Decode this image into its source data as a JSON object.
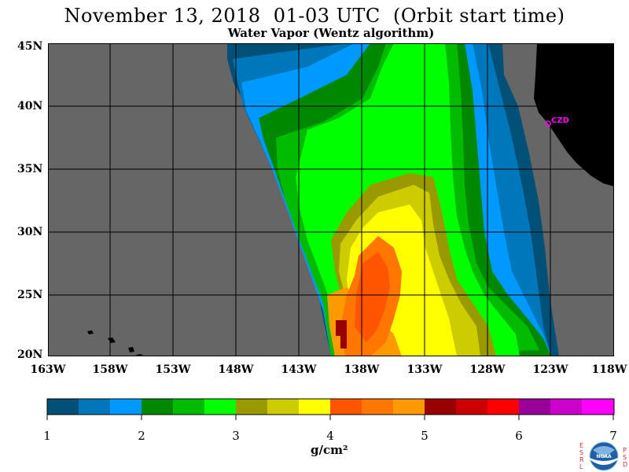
{
  "title": "November 13, 2018  01-03 UTC  (Orbit start time)",
  "subtitle": "Water Vapor (Wentz algorithm)",
  "lat_labels": [
    "45N",
    "40N",
    "35N",
    "30N",
    "25N",
    "20N"
  ],
  "lon_labels": [
    "163W",
    "158W",
    "153W",
    "148W",
    "143W",
    "138W",
    "133W",
    "128W",
    "123W",
    "118W"
  ],
  "station_label": "CZD",
  "colorbar": {
    "ticks": [
      "1",
      "2",
      "3",
      "4",
      "5",
      "6",
      "7"
    ],
    "unit": "g/cm²",
    "colors": [
      "#005077",
      "#0077bb",
      "#0099ff",
      "#008800",
      "#00bb00",
      "#00ff00",
      "#999900",
      "#cccc00",
      "#ffff00",
      "#ff5500",
      "#ff7700",
      "#ff9900",
      "#990000",
      "#cc0000",
      "#ff0000",
      "#990099",
      "#cc00cc",
      "#ff00ff"
    ]
  },
  "logo": {
    "left_letters": "ESRL",
    "right_letters": "PSD",
    "center_text": "NOAA"
  },
  "colors": {
    "missing": "#666666",
    "land": "#000000",
    "station": "#ff00ff"
  }
}
